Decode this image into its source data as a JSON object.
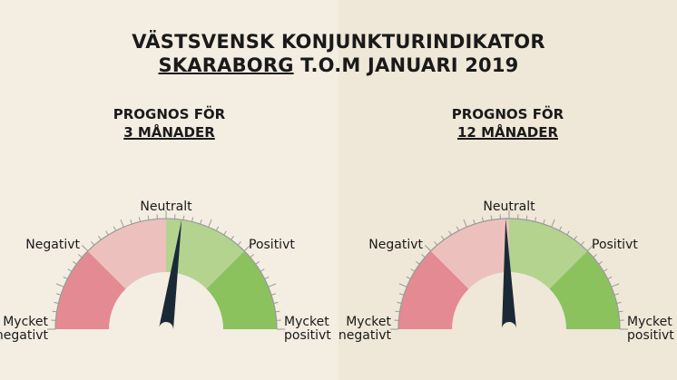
{
  "title": {
    "line1": "VÄSTSVENSK KONJUNKTURINDIKATOR",
    "region": "SKARABORG",
    "line2_rest": " T.O.M JANUARI 2019"
  },
  "chart_data": [
    {
      "type": "gauge",
      "title_line1": "PROGNOS FÖR",
      "title_line2": "3 MÅNADER",
      "range": [
        -100,
        100
      ],
      "value": 9,
      "labels": {
        "very_negative": [
          "Mycket",
          "negativt"
        ],
        "negative": "Negativt",
        "neutral": "Neutralt",
        "positive": "Positivt",
        "very_positive": [
          "Mycket",
          "positivt"
        ]
      }
    },
    {
      "type": "gauge",
      "title_line1": "PROGNOS FÖR",
      "title_line2": "12 MÅNADER",
      "range": [
        -100,
        100
      ],
      "value": -2,
      "labels": {
        "very_negative": [
          "Mycket",
          "negativt"
        ],
        "negative": "Negativt",
        "neutral": "Neutralt",
        "positive": "Positivt",
        "very_positive": [
          "Mycket",
          "positivt"
        ]
      }
    }
  ],
  "colors": {
    "very_negative": "#e48a93",
    "negative": "#ecc1bd",
    "positive": "#b3d38f",
    "very_positive": "#8bc25e",
    "needle": "#1b2937",
    "tick": "#9a9a9a"
  }
}
